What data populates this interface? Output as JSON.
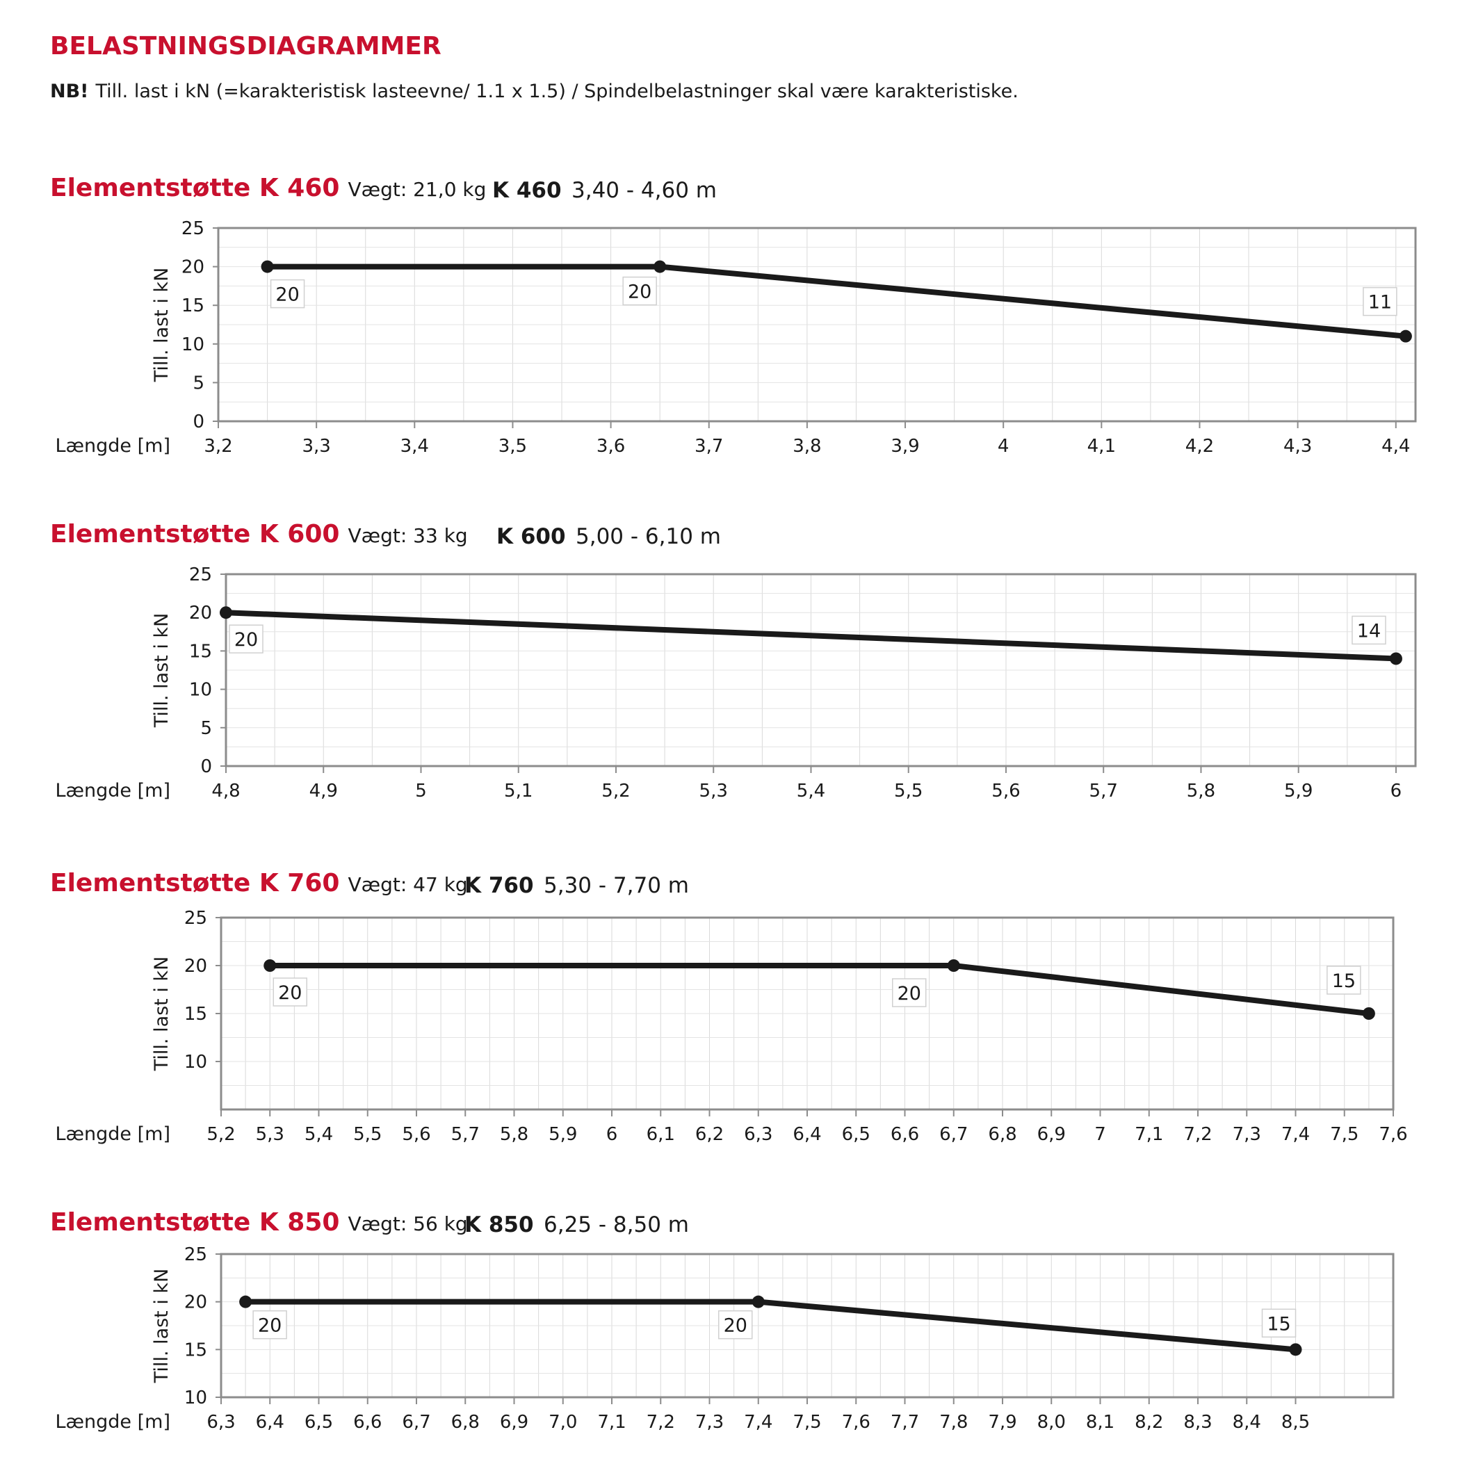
{
  "header": {
    "title": "BELASTNINGSDIAGRAMMER",
    "note_label": "NB!",
    "note_text": "Till. last i kN (=karakteristisk lasteevne/ 1.1 x 1.5) / Spindelbelastninger skal være karakteristiske."
  },
  "sections": [
    {
      "title": "Elementstøtte K 460",
      "weight": "Vægt: 21,0 kg",
      "model": "K 460",
      "range": "3,40 - 4,60 m"
    },
    {
      "title": "Elementstøtte K 600",
      "weight": "Vægt: 33 kg",
      "model": "K 600",
      "range": "5,00 - 6,10 m"
    },
    {
      "title": "Elementstøtte K 760",
      "weight": "Vægt: 47 kg",
      "model": "K 760",
      "range": "5,30 - 7,70 m"
    },
    {
      "title": "Elementstøtte K 850",
      "weight": "Vægt: 56 kg",
      "model": "K 850",
      "range": "6,25 - 8,50 m"
    }
  ],
  "chart_data": [
    {
      "type": "line",
      "xlabel": "Længde [m]",
      "ylabel": "Till. last i kN",
      "xlim": [
        3.2,
        4.42
      ],
      "ylim": [
        0,
        25
      ],
      "grid": true,
      "x_ticks": [
        3.2,
        3.3,
        3.4,
        3.5,
        3.6,
        3.7,
        3.8,
        3.9,
        4.0,
        4.1,
        4.2,
        4.3,
        4.4
      ],
      "x_tick_labels": [
        "3,2",
        "3,3",
        "3,4",
        "3,5",
        "3,6",
        "3,7",
        "3,8",
        "3,9",
        "4",
        "4,1",
        "4,2",
        "4,3",
        "4,4"
      ],
      "y_ticks": [
        0,
        5,
        10,
        15,
        20,
        25
      ],
      "y_tick_labels": [
        "0",
        "5",
        "10",
        "15",
        "20",
        "25"
      ],
      "series": [
        {
          "x": [
            3.25,
            3.65,
            4.41
          ],
          "y": [
            20,
            20,
            11
          ],
          "labels": [
            "20",
            "20",
            "11"
          ]
        }
      ]
    },
    {
      "type": "line",
      "xlabel": "Længde [m]",
      "ylabel": "Till. last i kN",
      "xlim": [
        4.8,
        6.02
      ],
      "ylim": [
        0,
        25
      ],
      "grid": true,
      "x_ticks": [
        4.8,
        4.9,
        5.0,
        5.1,
        5.2,
        5.3,
        5.4,
        5.5,
        5.6,
        5.7,
        5.8,
        5.9,
        6.0
      ],
      "x_tick_labels": [
        "4,8",
        "4,9",
        "5",
        "5,1",
        "5,2",
        "5,3",
        "5,4",
        "5,5",
        "5,6",
        "5,7",
        "5,8",
        "5,9",
        "6"
      ],
      "y_ticks": [
        0,
        5,
        10,
        15,
        20,
        25
      ],
      "y_tick_labels": [
        "0",
        "5",
        "10",
        "15",
        "20",
        "25"
      ],
      "series": [
        {
          "x": [
            4.8,
            6.0
          ],
          "y": [
            20,
            14
          ],
          "labels": [
            "20",
            "14"
          ]
        }
      ]
    },
    {
      "type": "line",
      "xlabel": "Længde [m]",
      "ylabel": "Till. last i kN",
      "xlim": [
        5.2,
        7.6
      ],
      "ylim": [
        5,
        25
      ],
      "grid": true,
      "x_ticks": [
        5.2,
        5.3,
        5.4,
        5.5,
        5.6,
        5.7,
        5.8,
        5.9,
        6.0,
        6.1,
        6.2,
        6.3,
        6.4,
        6.5,
        6.6,
        6.7,
        6.8,
        6.9,
        7.0,
        7.1,
        7.2,
        7.3,
        7.4,
        7.5,
        7.6
      ],
      "x_tick_labels": [
        "5,2",
        "5,3",
        "5,4",
        "5,5",
        "5,6",
        "5,7",
        "5,8",
        "5,9",
        "6",
        "6,1",
        "6,2",
        "6,3",
        "6,4",
        "6,5",
        "6,6",
        "6,7",
        "6,8",
        "6,9",
        "7",
        "7,1",
        "7,2",
        "7,3",
        "7,4",
        "7,5",
        "7,6"
      ],
      "y_ticks": [
        10,
        15,
        20,
        25
      ],
      "y_tick_labels": [
        "10",
        "15",
        "20",
        "25"
      ],
      "series": [
        {
          "x": [
            5.3,
            6.7,
            7.55
          ],
          "y": [
            20,
            20,
            15
          ],
          "labels": [
            "20",
            "20",
            "15"
          ]
        }
      ]
    },
    {
      "type": "line",
      "xlabel": "Længde [m]",
      "ylabel": "Till. last i kN",
      "xlim": [
        6.3,
        8.7
      ],
      "ylim": [
        10,
        25
      ],
      "grid": true,
      "x_ticks": [
        6.3,
        6.4,
        6.5,
        6.6,
        6.7,
        6.8,
        6.9,
        7.0,
        7.1,
        7.2,
        7.3,
        7.4,
        7.5,
        7.6,
        7.7,
        7.8,
        7.9,
        8.0,
        8.1,
        8.2,
        8.3,
        8.4,
        8.5
      ],
      "x_tick_labels": [
        "6,3",
        "6,4",
        "6,5",
        "6,6",
        "6,7",
        "6,8",
        "6,9",
        "7,0",
        "7,1",
        "7,2",
        "7,3",
        "7,4",
        "7,5",
        "7,6",
        "7,7",
        "7,8",
        "7,9",
        "8,0",
        "8,1",
        "8,2",
        "8,3",
        "8,4",
        "8,5"
      ],
      "y_ticks": [
        10,
        15,
        20,
        25
      ],
      "y_tick_labels": [
        "10",
        "15",
        "20",
        "25"
      ],
      "series": [
        {
          "x": [
            6.35,
            7.4,
            8.5
          ],
          "y": [
            20,
            20,
            15
          ],
          "labels": [
            "20",
            "20",
            "15"
          ]
        }
      ]
    }
  ]
}
